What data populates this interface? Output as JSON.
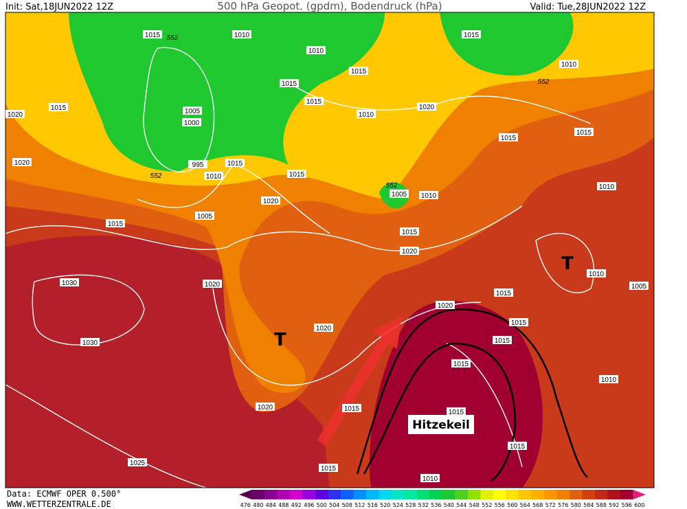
{
  "header": {
    "init": "Init: Sat,18JUN2022 12Z",
    "title": "500 hPa Geopot. (gpdm), Bodendruck (hPa)",
    "valid": "Valid: Tue,28JUN2022 12Z"
  },
  "footer": {
    "source": "Data: ECMWF OPER 0.500°",
    "site": "WWW.WETTERZENTRALE.DE"
  },
  "annotations": {
    "lows": [
      "T",
      "T"
    ],
    "heat": "Hitzekeil"
  },
  "isobar_labels": [
    "1015",
    "1010",
    "1010",
    "1015",
    "1010",
    "1015",
    "1015",
    "1015",
    "1015",
    "1020",
    "1005",
    "1000",
    "1010",
    "1020",
    "1015",
    "1015",
    "1020",
    "995",
    "1015",
    "1010",
    "1015",
    "1005",
    "1010",
    "1010",
    "1020",
    "1005",
    "1015",
    "1015",
    "1020",
    "1030",
    "1020",
    "1010",
    "1005",
    "1015",
    "1020",
    "1020",
    "1015",
    "1015",
    "1030",
    "1015",
    "1010",
    "1020",
    "1015",
    "1015",
    "1015",
    "1025",
    "1015",
    "1010"
  ],
  "geopotential_labels": [
    "552",
    "552",
    "552",
    "552"
  ],
  "scale": {
    "values": [
      "476",
      "480",
      "484",
      "488",
      "492",
      "496",
      "500",
      "504",
      "508",
      "512",
      "516",
      "520",
      "524",
      "528",
      "532",
      "536",
      "540",
      "544",
      "548",
      "552",
      "556",
      "560",
      "564",
      "568",
      "572",
      "576",
      "580",
      "584",
      "588",
      "592",
      "596",
      "600"
    ],
    "colors": [
      "#5a0050",
      "#6a006a",
      "#8a0090",
      "#b000b0",
      "#d000d0",
      "#9a00e0",
      "#6000e0",
      "#3030f0",
      "#1060ff",
      "#0090ff",
      "#00b8ff",
      "#00d8f0",
      "#00e8c8",
      "#00e8a0",
      "#00e070",
      "#00d050",
      "#20c830",
      "#50d020",
      "#90e000",
      "#e0f000",
      "#ffff00",
      "#ffe000",
      "#ffc800",
      "#ffb000",
      "#ff9800",
      "#f08000",
      "#e06010",
      "#d04010",
      "#c02818",
      "#b01020",
      "#a00030",
      "#e0207a"
    ]
  }
}
